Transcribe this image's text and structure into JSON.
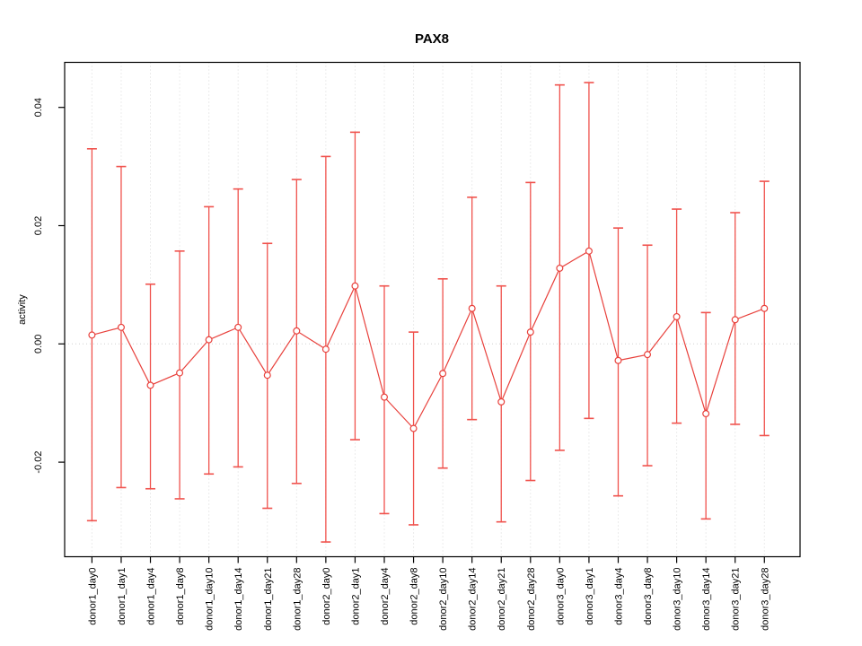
{
  "title": "PAX8",
  "ylabel": "activity",
  "colors": {
    "bar": "#f0524d",
    "point": "#e8413c",
    "line": "#e8413c",
    "grid": "#d9d9d9",
    "zero_line": "#cfcfcf",
    "axis": "#000000",
    "background": "#ffffff"
  },
  "chart_data": {
    "type": "line",
    "title": "PAX8",
    "xlabel": "",
    "ylabel": "activity",
    "legend": "none",
    "grid": "vertical dotted gridline per category plus dotted horizontal line at 0",
    "marker": "open-circle",
    "error_bars": true,
    "ylim": [
      -0.036,
      0.0475
    ],
    "yticks": {
      "values": [
        -0.02,
        0,
        0.02,
        0.04
      ],
      "labels": [
        "-0.02",
        "0.00",
        "0.02",
        "0.04"
      ]
    },
    "categories": [
      "donor1_day0",
      "donor1_day1",
      "donor1_day4",
      "donor1_day8",
      "donor1_day10",
      "donor1_day14",
      "donor1_day21",
      "donor1_day28",
      "donor2_day0",
      "donor2_day1",
      "donor2_day4",
      "donor2_day8",
      "donor2_day10",
      "donor2_day14",
      "donor2_day21",
      "donor2_day28",
      "donor3_day0",
      "donor3_day1",
      "donor3_day4",
      "donor3_day8",
      "donor3_day10",
      "donor3_day14",
      "donor3_day21",
      "donor3_day28"
    ],
    "series": [
      {
        "name": "activity",
        "values": [
          0.0015,
          0.0028,
          -0.007,
          -0.0049,
          0.0007,
          0.0028,
          -0.0053,
          0.0022,
          -0.0009,
          0.0098,
          -0.009,
          -0.0143,
          -0.005,
          0.006,
          -0.0098,
          0.002,
          0.0128,
          0.0157,
          -0.0028,
          -0.0018,
          0.0046,
          -0.0118,
          0.0041,
          0.006
        ],
        "upper": [
          0.033,
          0.03,
          0.0101,
          0.0157,
          0.0232,
          0.0262,
          0.017,
          0.0278,
          0.0317,
          0.0358,
          0.0098,
          0.002,
          0.011,
          0.0248,
          0.0098,
          0.0273,
          0.0438,
          0.0442,
          0.0196,
          0.0167,
          0.0228,
          0.0053,
          0.0222,
          0.0275
        ],
        "lower": [
          -0.0299,
          -0.0243,
          -0.0245,
          -0.0262,
          -0.022,
          -0.0208,
          -0.0278,
          -0.0236,
          -0.0335,
          -0.0162,
          -0.0287,
          -0.0306,
          -0.021,
          -0.0128,
          -0.0301,
          -0.0231,
          -0.018,
          -0.0126,
          -0.0257,
          -0.0206,
          -0.0134,
          -0.0296,
          -0.0136,
          -0.0155
        ]
      }
    ]
  }
}
